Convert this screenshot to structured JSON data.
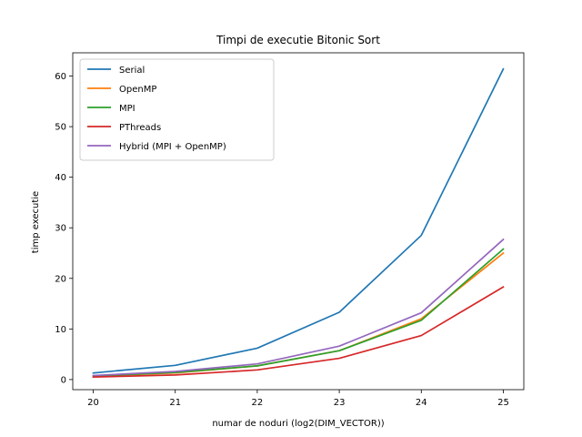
{
  "chart_data": {
    "type": "line",
    "title": "Timpi de executie Bitonic Sort",
    "xlabel": "numar de noduri (log2(DIM_VECTOR))",
    "ylabel": "timp executie",
    "x": [
      20,
      21,
      22,
      23,
      24,
      25
    ],
    "xlim": [
      19.75,
      25.25
    ],
    "ylim": [
      -2.0,
      64.6
    ],
    "xticks": [
      20,
      21,
      22,
      23,
      24,
      25
    ],
    "yticks": [
      0,
      10,
      20,
      30,
      40,
      50,
      60
    ],
    "grid": false,
    "legend_position": "upper left",
    "series": [
      {
        "name": "Serial",
        "color": "#1f77b4",
        "values": [
          1.3,
          2.8,
          6.2,
          13.3,
          28.5,
          61.4
        ]
      },
      {
        "name": "OpenMP",
        "color": "#ff7f0e",
        "values": [
          0.7,
          1.3,
          2.7,
          5.7,
          12.0,
          25.0
        ]
      },
      {
        "name": "MPI",
        "color": "#2ca02c",
        "values": [
          0.7,
          1.4,
          2.7,
          5.7,
          11.7,
          25.8
        ]
      },
      {
        "name": "PThreads",
        "color": "#d62728",
        "values": [
          0.5,
          0.9,
          1.9,
          4.2,
          8.7,
          18.3
        ]
      },
      {
        "name": "Hybrid (MPI + OpenMP)",
        "color": "#9467bd",
        "values": [
          0.8,
          1.6,
          3.1,
          6.6,
          13.2,
          27.7
        ]
      }
    ]
  }
}
